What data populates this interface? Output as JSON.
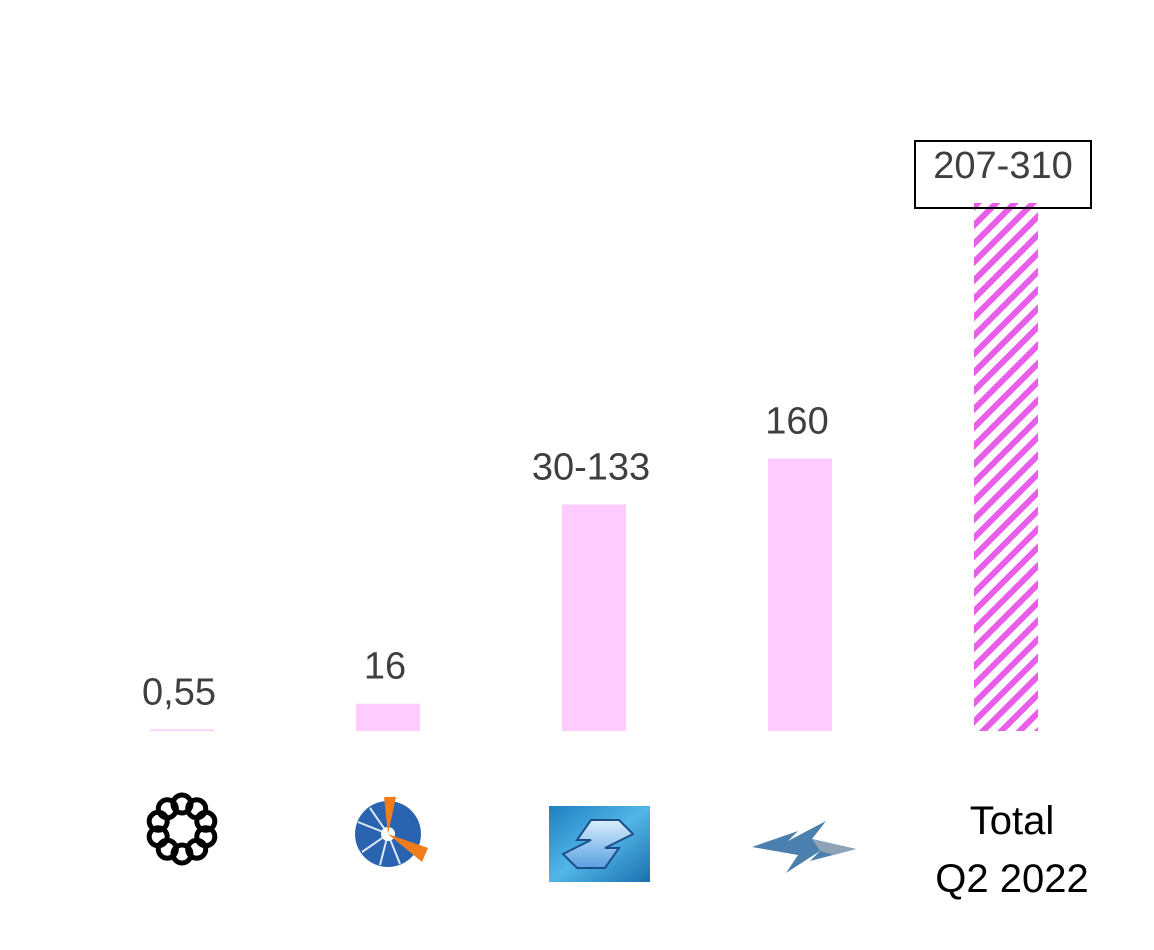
{
  "chart_data": {
    "type": "bar",
    "categories": [
      "logo-ring-icon",
      "logo-pie-burst-icon",
      "logo-blue-s-icon",
      "logo-lightning-z-icon",
      "Total Q2 2022"
    ],
    "values": [
      0.55,
      16,
      133,
      160,
      310
    ],
    "ranges": [
      null,
      null,
      [
        30,
        133
      ],
      null,
      [
        207,
        310
      ]
    ],
    "data_labels": [
      "0,55",
      "16",
      "30-133",
      "160",
      "207-310"
    ],
    "total_label_line1": "Total",
    "total_label_line2": "Q2 2022",
    "ylim": [
      0,
      330
    ],
    "grid": false,
    "colors": {
      "bar": "#ffccff",
      "hatch": "#e85ee8",
      "label": "#3f3f3f",
      "total_text": "#000000"
    }
  }
}
